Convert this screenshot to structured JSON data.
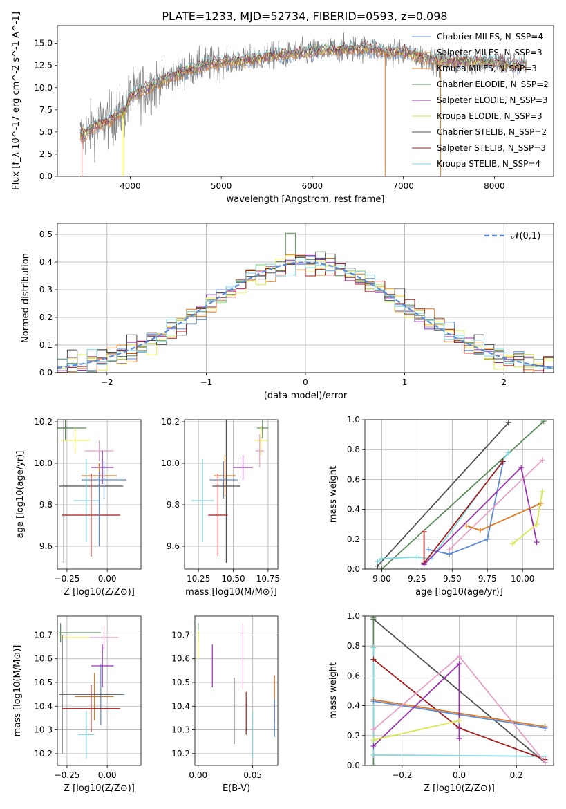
{
  "figure": {
    "title": "PLATE=1233, MJD=52734, FIBERID=0593, z=0.098"
  },
  "colors": {
    "grid": "#b0b0b0",
    "spectrum": "#808080",
    "normal": "#5b8bd8",
    "models": [
      "#5b8bd8",
      "#e07820",
      "#5a8a5a",
      "#9a30b0",
      "#d8e84a",
      "#f0f060",
      "#505050",
      "#a81818",
      "#80d8e0"
    ]
  },
  "chart_data": [
    {
      "id": "spectrum",
      "type": "line",
      "xlabel": "wavelength [Angstrom, rest frame]",
      "ylabel": "Flux [f_λ 10^-17 erg cm^-2 s^-1 A^-1]",
      "xlim": [
        3200,
        8650
      ],
      "ylim": [
        0,
        17
      ],
      "xticks": [
        "4000",
        "5000",
        "6000",
        "7000",
        "8000"
      ],
      "yticks": [
        "0.0",
        "2.5",
        "5.0",
        "7.5",
        "10.0",
        "12.5",
        "15.0"
      ],
      "legend": [
        "Chabrier MILES, N_SSP=4",
        "Salpeter MILES, N_SSP=3",
        "Kroupa MILES, N_SSP=3",
        "Chabrier ELODIE, N_SSP=2",
        "Salpeter ELODIE, N_SSP=3",
        "Kroupa ELODIE, N_SSP=3",
        "Chabrier STELIB, N_SSP=2",
        "Salpeter STELIB, N_SSP=3",
        "Kroupa STELIB, N_SSP=4"
      ],
      "legend_colors": [
        "#5b8bd8",
        "#e07820",
        "#e07820",
        "#5a8a5a",
        "#9a30b0",
        "#d8e84a",
        "#505050",
        "#a81818",
        "#80d8e0"
      ],
      "continuum": [
        [
          3450,
          4.5
        ],
        [
          3600,
          5.5
        ],
        [
          3800,
          6.5
        ],
        [
          3950,
          7.5
        ],
        [
          4000,
          9
        ],
        [
          4100,
          9.5
        ],
        [
          4300,
          10.5
        ],
        [
          4500,
          11.5
        ],
        [
          4800,
          12.5
        ],
        [
          5000,
          12.8
        ],
        [
          5200,
          13
        ],
        [
          5500,
          13.5
        ],
        [
          6000,
          14
        ],
        [
          6300,
          14.3
        ],
        [
          6600,
          14.5
        ],
        [
          6800,
          14
        ],
        [
          7000,
          14
        ],
        [
          7200,
          13.5
        ],
        [
          7400,
          13
        ],
        [
          7600,
          13
        ],
        [
          7800,
          13
        ],
        [
          8000,
          12.8
        ],
        [
          8300,
          12.5
        ]
      ]
    },
    {
      "id": "residuals",
      "type": "line",
      "xlabel": "(data-model)/error",
      "ylabel": "Normed distribution",
      "xlim": [
        -2.5,
        2.5
      ],
      "ylim": [
        0,
        0.54
      ],
      "xticks": [
        "−2",
        "−1",
        "0",
        "1",
        "2"
      ],
      "yticks": [
        "0.0",
        "0.1",
        "0.2",
        "0.3",
        "0.4",
        "0.5"
      ],
      "legend": [
        "𝒩(0,1)"
      ]
    },
    {
      "id": "age-vs-Z",
      "type": "scatter",
      "xlabel": "Z [log10(Z/Z⊙)]",
      "ylabel": "age [log10(age/yr)]",
      "xlim": [
        -0.31,
        0.21
      ],
      "ylim": [
        9.49,
        10.21
      ],
      "xticks": [
        "−0.25",
        "0.00"
      ],
      "yticks": [
        "9.6",
        "9.8",
        "10.0",
        "10.2"
      ],
      "points": [
        {
          "x": -0.22,
          "y": 10.17,
          "xerr": 0.09,
          "yerr": 0.0,
          "color": "#5a8a5a"
        },
        {
          "x": -0.26,
          "y": 10.17,
          "xerr": 0.05,
          "yerr": 0.06,
          "color": "#5a8a5a"
        },
        {
          "x": -0.2,
          "y": 10.11,
          "xerr": 0.09,
          "yerr": 0.06,
          "color": "#f0f060"
        },
        {
          "x": -0.05,
          "y": 10.06,
          "xerr": 0.09,
          "yerr": 0.05,
          "color": "#e8a0c8"
        },
        {
          "x": -0.03,
          "y": 9.98,
          "xerr": 0.07,
          "yerr": 0.08,
          "color": "#9a30b0"
        },
        {
          "x": -0.05,
          "y": 9.94,
          "xerr": 0.11,
          "yerr": 0.06,
          "color": "#e07820"
        },
        {
          "x": -0.02,
          "y": 9.92,
          "xerr": 0.14,
          "yerr": 0.09,
          "color": "#5b8bd8"
        },
        {
          "x": -0.27,
          "y": 9.89,
          "xerr": 0.02,
          "yerr": 0.37,
          "color": "#505050"
        },
        {
          "x": -0.1,
          "y": 9.89,
          "xerr": 0.2,
          "yerr": 0.0,
          "color": "#505050"
        },
        {
          "x": -0.13,
          "y": 9.82,
          "xerr": 0.08,
          "yerr": 0.2,
          "color": "#80d8e0"
        },
        {
          "x": -0.1,
          "y": 9.75,
          "xerr": 0.18,
          "yerr": 0.2,
          "color": "#a81818"
        },
        {
          "x": -0.05,
          "y": 9.78,
          "xerr": 0.0,
          "yerr": 0.18,
          "color": "#5b8bd8"
        }
      ]
    },
    {
      "id": "age-vs-mass",
      "type": "scatter",
      "xlabel": "mass [log10(M/M⊙)]",
      "ylabel": "",
      "xlim": [
        10.15,
        10.82
      ],
      "ylim": [
        9.49,
        10.21
      ],
      "xticks": [
        "10.25",
        "10.50",
        "10.75"
      ],
      "yticks": [
        "9.6",
        "9.8",
        "10.0",
        "10.2"
      ],
      "points": [
        {
          "x": 10.71,
          "y": 10.17,
          "xerr": 0.04,
          "yerr": 0.05,
          "color": "#5a8a5a"
        },
        {
          "x": 10.7,
          "y": 10.11,
          "xerr": 0.05,
          "yerr": 0.07,
          "color": "#f0f060"
        },
        {
          "x": 10.69,
          "y": 10.06,
          "xerr": 0.03,
          "yerr": 0.08,
          "color": "#e8a0c8"
        },
        {
          "x": 10.57,
          "y": 9.98,
          "xerr": 0.07,
          "yerr": 0.06,
          "color": "#9a30b0"
        },
        {
          "x": 10.44,
          "y": 9.94,
          "xerr": 0.08,
          "yerr": 0.1,
          "color": "#e07820"
        },
        {
          "x": 10.43,
          "y": 9.92,
          "xerr": 0.1,
          "yerr": 0.09,
          "color": "#5b8bd8"
        },
        {
          "x": 10.45,
          "y": 9.89,
          "xerr": 0.1,
          "yerr": 0.37,
          "color": "#505050"
        },
        {
          "x": 10.28,
          "y": 9.82,
          "xerr": 0.08,
          "yerr": 0.2,
          "color": "#80d8e0"
        },
        {
          "x": 10.39,
          "y": 9.75,
          "xerr": 0.07,
          "yerr": 0.2,
          "color": "#a81818"
        }
      ]
    },
    {
      "id": "massweight-vs-age",
      "type": "line",
      "xlabel": "age [log10(age/yr)]",
      "ylabel": "mass weight",
      "xlim": [
        8.88,
        10.22
      ],
      "ylim": [
        0,
        1
      ],
      "xticks": [
        "9.00",
        "9.25",
        "9.50",
        "9.75",
        "10.00"
      ],
      "yticks": [
        "0.0",
        "0.2",
        "0.4",
        "0.6",
        "0.8",
        "1.0"
      ],
      "series": [
        {
          "color": "#505050",
          "points": [
            [
              8.97,
              0.02
            ],
            [
              9.9,
              0.98
            ]
          ]
        },
        {
          "color": "#5a8a5a",
          "points": [
            [
              9.0,
              0.0
            ],
            [
              10.15,
              0.99
            ]
          ]
        },
        {
          "color": "#80d8e0",
          "points": [
            [
              8.97,
              0.05
            ],
            [
              9.0,
              0.07
            ],
            [
              9.25,
              0.08
            ],
            [
              9.35,
              0.07
            ],
            [
              9.9,
              0.78
            ]
          ]
        },
        {
          "color": "#5b8bd8",
          "points": [
            [
              9.33,
              0.13
            ],
            [
              9.48,
              0.1
            ],
            [
              9.75,
              0.2
            ],
            [
              9.86,
              0.71
            ]
          ]
        },
        {
          "color": "#a81818",
          "points": [
            [
              9.3,
              0.25
            ],
            [
              9.3,
              0.04
            ],
            [
              9.86,
              0.72
            ]
          ]
        },
        {
          "color": "#9a30b0",
          "points": [
            [
              9.3,
              0.03
            ],
            [
              9.99,
              0.68
            ],
            [
              10.1,
              0.18
            ]
          ]
        },
        {
          "color": "#e8a0c8",
          "points": [
            [
              9.48,
              0.13
            ],
            [
              10.14,
              0.73
            ]
          ]
        },
        {
          "color": "#e07820",
          "points": [
            [
              9.6,
              0.29
            ],
            [
              9.7,
              0.26
            ],
            [
              10.13,
              0.44
            ]
          ]
        },
        {
          "color": "#d8e84a",
          "points": [
            [
              9.93,
              0.17
            ],
            [
              10.1,
              0.3
            ],
            [
              10.14,
              0.52
            ]
          ]
        }
      ]
    },
    {
      "id": "mass-vs-Z",
      "type": "scatter",
      "xlabel": "Z [log10(Z/Z⊙)]",
      "ylabel": "mass [log10(M/M⊙)]",
      "xlim": [
        -0.31,
        0.21
      ],
      "ylim": [
        10.15,
        10.78
      ],
      "xticks": [
        "−0.25",
        "0.00"
      ],
      "yticks": [
        "10.2",
        "10.3",
        "10.4",
        "10.5",
        "10.6",
        "10.7"
      ],
      "points": [
        {
          "x": -0.29,
          "y": 10.71,
          "xerr": 0.0,
          "yerr": 0.04,
          "color": "#5a8a5a"
        },
        {
          "x": -0.17,
          "y": 10.71,
          "xerr": 0.13,
          "yerr": 0.0,
          "color": "#5a8a5a"
        },
        {
          "x": -0.2,
          "y": 10.69,
          "xerr": 0.09,
          "yerr": 0.0,
          "color": "#f0f060"
        },
        {
          "x": -0.02,
          "y": 10.69,
          "xerr": 0.09,
          "yerr": 0.05,
          "color": "#e8a0c8"
        },
        {
          "x": -0.03,
          "y": 10.57,
          "xerr": 0.07,
          "yerr": 0.09,
          "color": "#9a30b0"
        },
        {
          "x": -0.08,
          "y": 10.44,
          "xerr": 0.12,
          "yerr": 0.1,
          "color": "#e07820"
        },
        {
          "x": -0.04,
          "y": 10.45,
          "xerr": 0.15,
          "yerr": 0.13,
          "color": "#5b8bd8"
        },
        {
          "x": -0.28,
          "y": 10.45,
          "xerr": 0.02,
          "yerr": 0.25,
          "color": "#505050"
        },
        {
          "x": -0.1,
          "y": 10.45,
          "xerr": 0.2,
          "yerr": 0.0,
          "color": "#505050"
        },
        {
          "x": -0.13,
          "y": 10.28,
          "xerr": 0.05,
          "yerr": 0.1,
          "color": "#80d8e0"
        },
        {
          "x": -0.1,
          "y": 10.39,
          "xerr": 0.18,
          "yerr": 0.1,
          "color": "#a81818"
        }
      ]
    },
    {
      "id": "mass-vs-EBV",
      "type": "scatter",
      "xlabel": "E(B-V)",
      "ylabel": "",
      "xlim": [
        -0.003,
        0.073
      ],
      "ylim": [
        10.15,
        10.78
      ],
      "xticks": [
        "0.00",
        "0.05"
      ],
      "yticks": [
        "10.2",
        "10.3",
        "10.4",
        "10.5",
        "10.6",
        "10.7"
      ],
      "points": [
        {
          "x": 0.0,
          "y": 10.71,
          "xerr": 0,
          "yerr": 0.04,
          "color": "#5a8a5a"
        },
        {
          "x": 0.0,
          "y": 10.66,
          "xerr": 0,
          "yerr": 0.06,
          "color": "#f0f060"
        },
        {
          "x": 0.013,
          "y": 10.57,
          "xerr": 0,
          "yerr": 0.09,
          "color": "#9a30b0"
        },
        {
          "x": 0.041,
          "y": 10.61,
          "xerr": 0,
          "yerr": 0.14,
          "color": "#e8a0c8"
        },
        {
          "x": 0.033,
          "y": 10.38,
          "xerr": 0,
          "yerr": 0.14,
          "color": "#505050"
        },
        {
          "x": 0.044,
          "y": 10.37,
          "xerr": 0,
          "yerr": 0.09,
          "color": "#a81818"
        },
        {
          "x": 0.05,
          "y": 10.28,
          "xerr": 0,
          "yerr": 0.1,
          "color": "#80d8e0"
        },
        {
          "x": 0.07,
          "y": 10.43,
          "xerr": 0,
          "yerr": 0.1,
          "color": "#e07820"
        },
        {
          "x": 0.07,
          "y": 10.35,
          "xerr": 0,
          "yerr": 0.08,
          "color": "#5b8bd8"
        }
      ]
    },
    {
      "id": "massweight-vs-Z",
      "type": "line",
      "xlabel": "Z [log10(Z/Z⊙)]",
      "ylabel": "mass weight",
      "xlim": [
        -0.33,
        0.33
      ],
      "ylim": [
        0,
        1
      ],
      "xticks": [
        "−0.2",
        "0.0",
        "0.2"
      ],
      "yticks": [
        "0.0",
        "0.2",
        "0.4",
        "0.6",
        "0.8",
        "1.0"
      ],
      "series": [
        {
          "color": "#505050",
          "points": [
            [
              -0.3,
              0.98
            ],
            [
              0.3,
              0.02
            ]
          ]
        },
        {
          "color": "#5a8a5a",
          "points": [
            [
              -0.3,
              0.0
            ],
            [
              -0.3,
              0.99
            ]
          ]
        },
        {
          "color": "#80d8e0",
          "points": [
            [
              -0.3,
              0.79
            ],
            [
              -0.3,
              0.07
            ],
            [
              0.3,
              0.06
            ]
          ]
        },
        {
          "color": "#a81818",
          "points": [
            [
              -0.3,
              0.71
            ],
            [
              0.0,
              0.25
            ],
            [
              0.3,
              0.04
            ]
          ]
        },
        {
          "color": "#e07820",
          "points": [
            [
              -0.3,
              0.44
            ],
            [
              0.3,
              0.26
            ]
          ]
        },
        {
          "color": "#5b8bd8",
          "points": [
            [
              -0.3,
              0.43
            ],
            [
              0.3,
              0.25
            ]
          ]
        },
        {
          "color": "#9a30b0",
          "points": [
            [
              -0.3,
              0.13
            ],
            [
              0.0,
              0.68
            ],
            [
              0.0,
              0.18
            ]
          ]
        },
        {
          "color": "#e8a0c8",
          "points": [
            [
              -0.3,
              0.24
            ],
            [
              0.0,
              0.73
            ],
            [
              0.3,
              0.02
            ]
          ]
        },
        {
          "color": "#d8e84a",
          "points": [
            [
              -0.3,
              0.17
            ],
            [
              0.0,
              0.3
            ]
          ]
        }
      ]
    }
  ]
}
